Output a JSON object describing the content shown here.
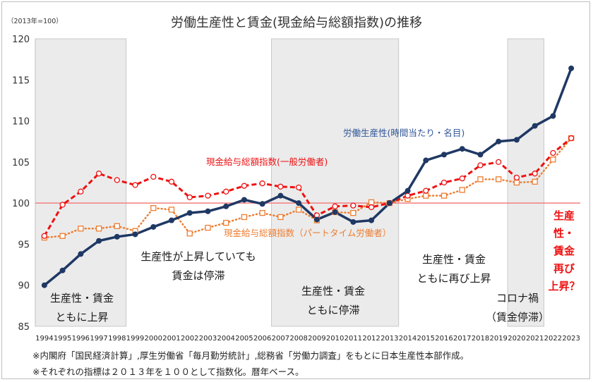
{
  "chart_data": {
    "type": "line",
    "title": "労働生産性と賃金(現金給与総額指数)の推移",
    "unit_label": "（2013年=100）",
    "ylim": [
      85,
      120
    ],
    "yticks": [
      85,
      90,
      95,
      100,
      105,
      110,
      115,
      120
    ],
    "x": [
      "1994",
      "1995",
      "1996",
      "1997",
      "1998",
      "1999",
      "2000",
      "2001",
      "2002",
      "2003",
      "2004",
      "2005",
      "2006",
      "2007",
      "2008",
      "2009",
      "2010",
      "2011",
      "2012",
      "2013",
      "2014",
      "2015",
      "2016",
      "2017",
      "2018",
      "2019",
      "2020",
      "2021",
      "2022",
      "2023"
    ],
    "grid": false,
    "reference_line": 100,
    "series": [
      {
        "name": "労働生産性(時間当たり・名目)",
        "color": "#1f3864",
        "style": "solid",
        "values": [
          90.0,
          91.8,
          93.8,
          95.4,
          95.9,
          96.2,
          97.1,
          97.9,
          98.8,
          99.0,
          99.6,
          100.4,
          99.9,
          100.9,
          100.0,
          98.0,
          98.9,
          97.7,
          97.9,
          100.0,
          101.5,
          105.2,
          105.9,
          106.6,
          105.9,
          107.5,
          107.7,
          109.4,
          110.6,
          116.4
        ]
      },
      {
        "name": "現金給与総額指数(一般労働者)",
        "color": "#ee1111",
        "style": "dashed",
        "values": [
          96.0,
          99.8,
          101.4,
          103.6,
          102.8,
          102.2,
          103.2,
          102.6,
          100.7,
          100.9,
          101.4,
          102.1,
          102.4,
          102.0,
          101.9,
          98.5,
          99.6,
          99.7,
          99.5,
          100.0,
          100.9,
          101.5,
          102.5,
          103.0,
          104.6,
          105.0,
          103.1,
          103.6,
          106.1,
          107.9
        ]
      },
      {
        "name": "現金給与総額指数（パートタイム労働者）",
        "color": "#ed7d31",
        "style": "dotted",
        "values": [
          95.8,
          96.0,
          96.9,
          96.9,
          97.2,
          96.6,
          99.4,
          99.2,
          96.3,
          97.0,
          97.6,
          98.3,
          98.8,
          98.3,
          99.2,
          97.9,
          98.9,
          98.8,
          100.1,
          100.0,
          100.5,
          100.9,
          100.9,
          101.6,
          102.9,
          102.9,
          102.5,
          102.6,
          105.3,
          107.9
        ]
      }
    ],
    "shaded_periods": [
      {
        "from": "1994",
        "to": "1998"
      },
      {
        "from": "2007",
        "to": "2013"
      },
      {
        "from": "2020",
        "to": "2021"
      }
    ],
    "annotations": [
      {
        "lines": [
          "生産性・賃金",
          "ともに上昇"
        ],
        "color": "#1a1a1a"
      },
      {
        "lines": [
          "生産性が上昇していても",
          "賃金は停滞"
        ],
        "color": "#1a1a1a"
      },
      {
        "lines": [
          "生産性・賃金",
          "ともに停滞"
        ],
        "color": "#1a1a1a"
      },
      {
        "lines": [
          "生産性・賃金",
          "ともに再び上昇"
        ],
        "color": "#1a1a1a"
      },
      {
        "lines": [
          "コロナ禍",
          "（賃金停滞）"
        ],
        "color": "#1a1a1a"
      },
      {
        "lines": [
          "生産",
          "性・",
          "賃金",
          "再び",
          "上昇？"
        ],
        "color": "#ee1111"
      }
    ]
  },
  "notes": [
    "※内閣府「国民経済計算」,厚生労働省「毎月勤労統計」,総務省「労働力調査」をもとに日本生産性本部作成。",
    "※それぞれの指標は２０１３年を１００として指数化。暦年ベース。"
  ]
}
